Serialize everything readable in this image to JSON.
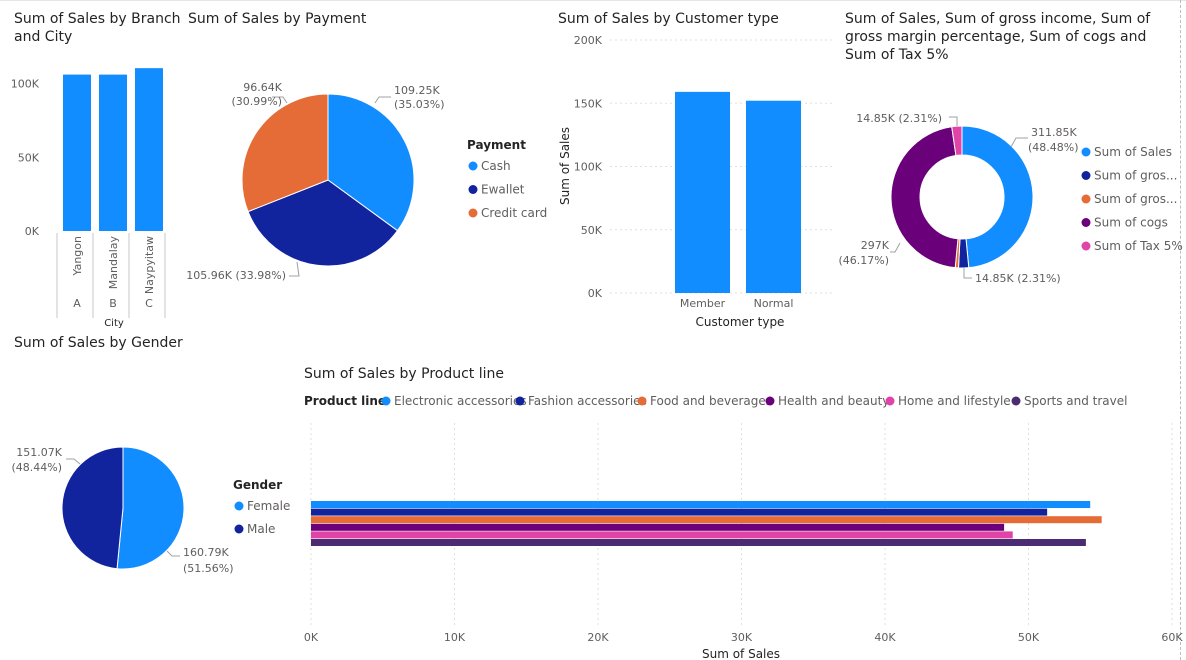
{
  "colors": {
    "blue": "#118DFF",
    "navy": "#12239E",
    "orange": "#E66C37",
    "purple": "#6B007B",
    "pink": "#E044A7",
    "dark_purple": "#4B2C73",
    "text": "#252423",
    "muted": "#605E5C",
    "grid": "#C8C6C4"
  },
  "chart_data": [
    {
      "id": "branch_city",
      "type": "bar",
      "title": "Sum of Sales by Branch and City",
      "xlabel": "City",
      "categories": [
        "Yangon",
        "Mandalay",
        "Naypyitaw"
      ],
      "category_groups": [
        "A",
        "B",
        "C"
      ],
      "values": [
        106200,
        106197,
        110569
      ],
      "yticks": [
        "0K",
        "50K",
        "100K"
      ],
      "ylim": [
        0,
        110000
      ]
    },
    {
      "id": "payment",
      "type": "pie",
      "title": "Sum of Sales by Payment",
      "legend_title": "Payment",
      "legend_position": "right",
      "slices": [
        {
          "name": "Cash",
          "value": 109250,
          "label": "109.25K",
          "pct": "(35.03%)"
        },
        {
          "name": "Ewallet",
          "value": 105960,
          "label": "105.96K (33.98%)",
          "pct": ""
        },
        {
          "name": "Credit card",
          "value": 96640,
          "label": "96.64K",
          "pct": "(30.99%)"
        }
      ]
    },
    {
      "id": "customer_type",
      "type": "bar",
      "title": "Sum of Sales by Customer type",
      "xlabel": "Customer type",
      "ylabel": "Sum of Sales",
      "categories": [
        "Member",
        "Normal"
      ],
      "values": [
        159000,
        152000
      ],
      "yticks": [
        "0K",
        "50K",
        "100K",
        "150K",
        "200K"
      ],
      "ylim": [
        0,
        200000
      ],
      "grid": true
    },
    {
      "id": "sum_metrics",
      "type": "pie",
      "donut": true,
      "title": "Sum of Sales, Sum of gross income, Sum of gross margin percentage, Sum of cogs and Sum of Tax 5%",
      "legend_position": "right",
      "slices": [
        {
          "name": "Sum of Sales",
          "legend": "Sum of Sales",
          "value": 311850,
          "label": "311.85K",
          "pct": "(48.48%)"
        },
        {
          "name": "Sum of gross income",
          "legend": "Sum of gros...",
          "value": 14850,
          "label": "14.85K (2.31%)",
          "pct": ""
        },
        {
          "name": "Sum of gross margin percentage",
          "legend": "Sum of gros...",
          "value": 4760,
          "label": "",
          "pct": ""
        },
        {
          "name": "Sum of cogs",
          "legend": "Sum of cogs",
          "value": 297000,
          "label": "297K",
          "pct": "(46.17%)"
        },
        {
          "name": "Sum of Tax 5%",
          "legend": "Sum of Tax 5%",
          "value": 14850,
          "label": "14.85K (2.31%)",
          "pct": ""
        }
      ]
    },
    {
      "id": "gender",
      "type": "pie",
      "title": "Sum of Sales by Gender",
      "legend_title": "Gender",
      "legend_position": "right",
      "slices": [
        {
          "name": "Female",
          "value": 160790,
          "label": "160.79K",
          "pct": "(51.56%)"
        },
        {
          "name": "Male",
          "value": 151070,
          "label": "151.07K",
          "pct": "(48.44%)"
        }
      ]
    },
    {
      "id": "product_line",
      "type": "bar",
      "orientation": "horizontal",
      "title": "Sum of Sales by Product line",
      "legend_title": "Product line",
      "legend_position": "top-left",
      "xlabel": "Sum of Sales",
      "series": [
        {
          "name": "Electronic accessories",
          "value": 54300
        },
        {
          "name": "Fashion accessories",
          "value": 51300
        },
        {
          "name": "Food and beverages",
          "value": 55100
        },
        {
          "name": "Health and beauty",
          "value": 48300
        },
        {
          "name": "Home and lifestyle",
          "value": 48900
        },
        {
          "name": "Sports and travel",
          "value": 54000
        }
      ],
      "xticks": [
        "0K",
        "10K",
        "20K",
        "30K",
        "40K",
        "50K",
        "60K"
      ],
      "xlim": [
        0,
        60000
      ],
      "grid": true
    }
  ]
}
